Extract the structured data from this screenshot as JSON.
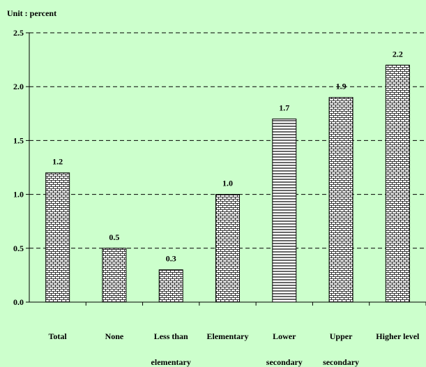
{
  "chart_data": {
    "type": "bar",
    "unit_label": "Unit : percent",
    "categories": [
      [
        "Total"
      ],
      [
        "None"
      ],
      [
        "Less than",
        "elementary"
      ],
      [
        "Elementary"
      ],
      [
        "Lower",
        "secondary"
      ],
      [
        "Upper",
        "secondary"
      ],
      [
        "Higher level"
      ]
    ],
    "values": [
      1.2,
      0.5,
      0.3,
      1.0,
      1.7,
      1.9,
      2.2
    ],
    "value_labels": [
      "1.2",
      "0.5",
      "0.3",
      "1.0",
      "1.7",
      "1.9",
      "2.2"
    ],
    "patterns": [
      "bricks",
      "bricks",
      "bricks",
      "bricks",
      "hlines",
      "bricks",
      "bricks"
    ],
    "ylim": [
      0,
      2.5
    ],
    "yticks": [
      0.0,
      0.5,
      1.0,
      1.5,
      2.0,
      2.5
    ],
    "ytick_labels": [
      "0.0",
      "0.5",
      "1.0",
      "1.5",
      "2.0",
      "2.5"
    ],
    "grid": true,
    "grid_style": "dashed",
    "background": "#ccffcc",
    "bar_fill": "#ffffff",
    "bar_stroke": "#000000"
  }
}
